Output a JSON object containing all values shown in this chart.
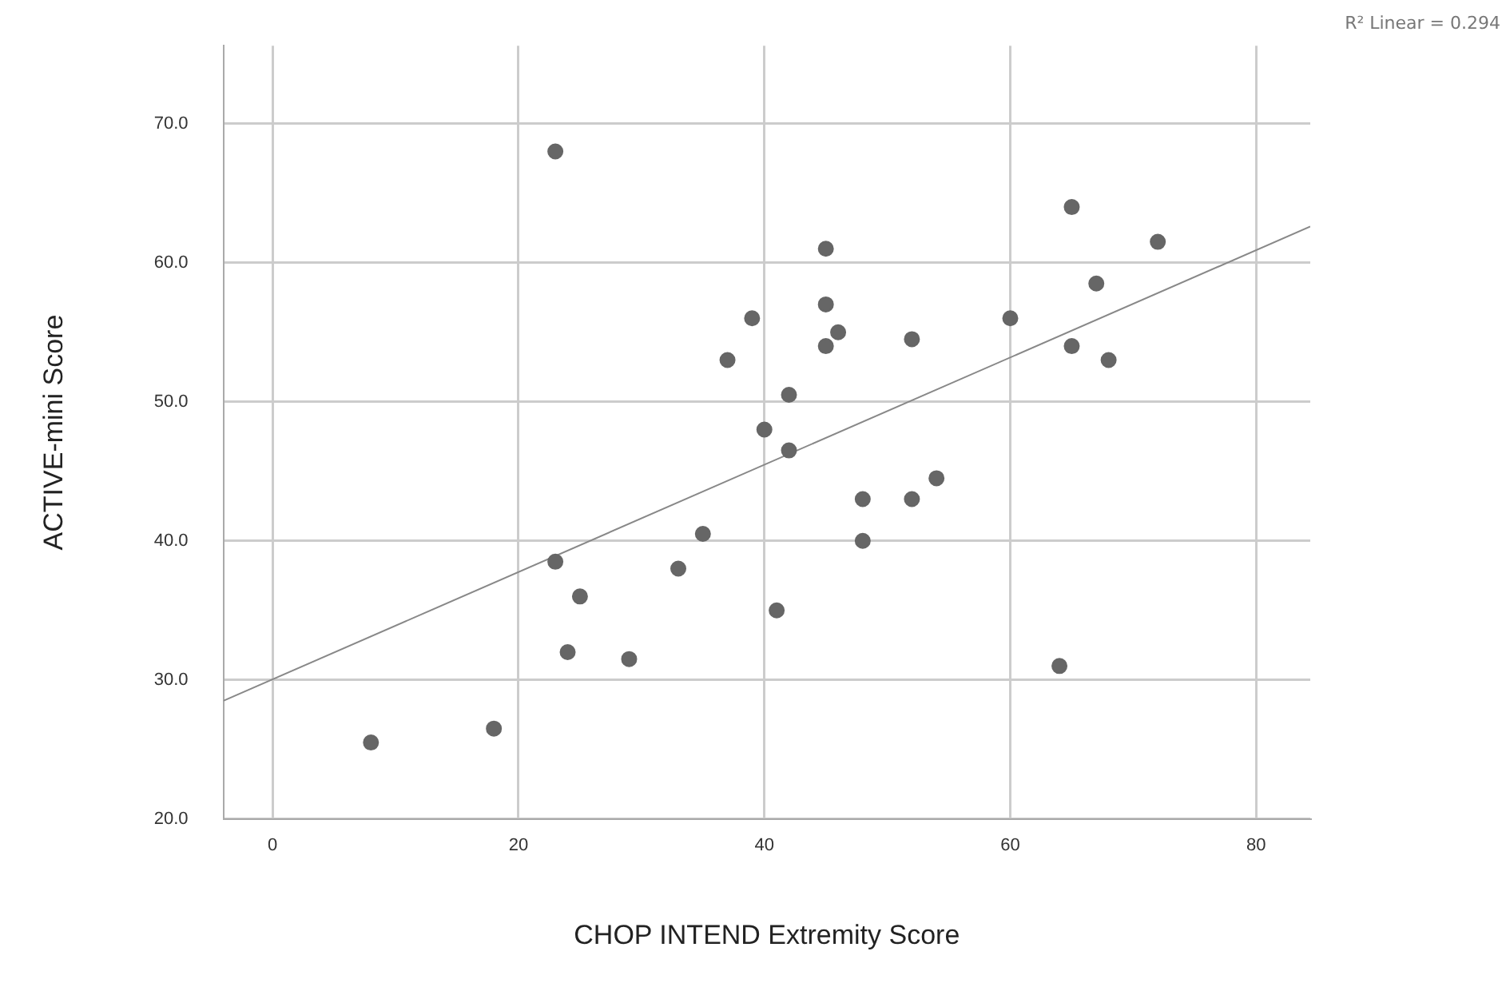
{
  "chart_data": {
    "type": "scatter",
    "xlabel": "CHOP INTEND Extremity Score",
    "ylabel": "ACTIVE-mini Score",
    "annotations": [
      "R² Linear = 0.294"
    ],
    "marker": "circle",
    "grid": true,
    "legend": false,
    "xlim": [
      -4,
      84.4
    ],
    "xticks": [
      0,
      20,
      40,
      60,
      80
    ],
    "ylim": [
      20,
      75.6
    ],
    "yticks": [
      {
        "value": 20,
        "label": "20.0"
      },
      {
        "value": 30,
        "label": "30.0"
      },
      {
        "value": 40,
        "label": "40.0"
      },
      {
        "value": 50,
        "label": "50.0"
      },
      {
        "value": 60,
        "label": "60.0"
      },
      {
        "value": 70,
        "label": "70.0"
      }
    ],
    "series": [
      {
        "color": "#666666",
        "x": [
          8,
          18,
          23,
          23,
          24,
          25,
          29,
          33,
          35,
          37,
          39,
          40,
          41,
          42,
          42,
          45,
          45,
          45,
          46,
          48,
          48,
          52,
          52,
          54,
          60,
          64,
          65,
          65,
          67,
          68,
          72
        ],
        "values": [
          25.5,
          26.5,
          68,
          38.5,
          32,
          36,
          31.5,
          38,
          40.5,
          53,
          56,
          48,
          35,
          50.5,
          46.5,
          61,
          57,
          54,
          55,
          43,
          40,
          54.5,
          43,
          44.5,
          56,
          31,
          64,
          54,
          58.5,
          53,
          61.5
        ]
      },
      {
        "type": "line",
        "color": "#888888",
        "marker": "none",
        "x": [
          -4,
          84.4
        ],
        "values": [
          28.5,
          62.6
        ]
      }
    ]
  }
}
